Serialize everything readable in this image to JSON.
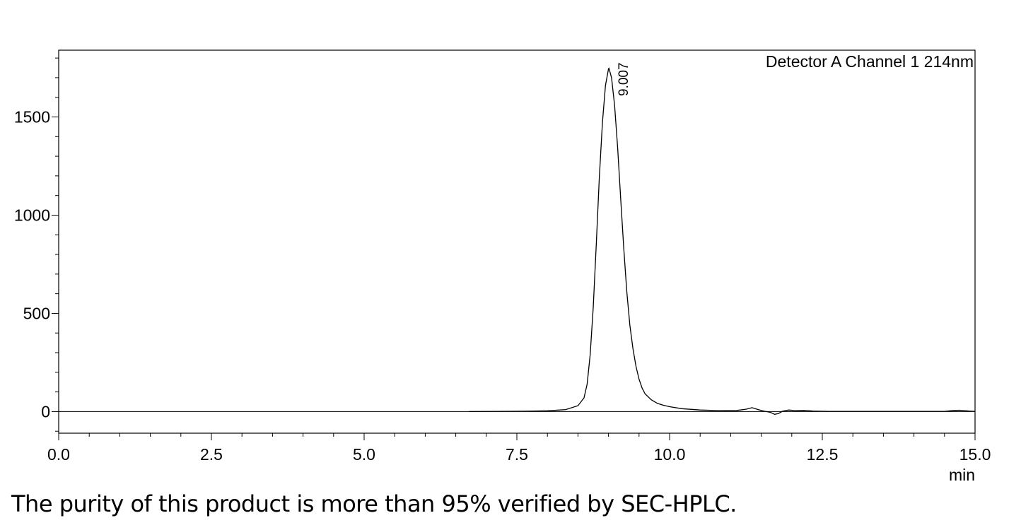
{
  "page": {
    "caption": "The purity of this product is more than 95% verified by SEC-HPLC."
  },
  "chart_data": {
    "type": "line",
    "title": "",
    "legend": "Detector A Channel 1 214nm",
    "xlabel": "min",
    "ylabel": "",
    "xlim": [
      0.0,
      15.0
    ],
    "ylim": [
      -110,
      1840
    ],
    "x_ticks": [
      "0.0",
      "2.5",
      "5.0",
      "7.5",
      "10.0",
      "12.5",
      "15.0"
    ],
    "x_tick_values": [
      0.0,
      2.5,
      5.0,
      7.5,
      10.0,
      12.5,
      15.0
    ],
    "y_ticks": [
      "0",
      "500",
      "1000",
      "1500"
    ],
    "y_tick_values": [
      0,
      500,
      1000,
      1500
    ],
    "grid": false,
    "baseline": 0,
    "peak_label": "9.007",
    "series": [
      {
        "color": "#000000",
        "points": [
          [
            6.72,
            0
          ],
          [
            7.2,
            1
          ],
          [
            7.6,
            2
          ],
          [
            8.0,
            4
          ],
          [
            8.3,
            10
          ],
          [
            8.5,
            30
          ],
          [
            8.6,
            70
          ],
          [
            8.65,
            140
          ],
          [
            8.7,
            290
          ],
          [
            8.75,
            530
          ],
          [
            8.8,
            850
          ],
          [
            8.85,
            1190
          ],
          [
            8.9,
            1470
          ],
          [
            8.95,
            1660
          ],
          [
            9.0,
            1745
          ],
          [
            9.007,
            1748
          ],
          [
            9.05,
            1700
          ],
          [
            9.1,
            1560
          ],
          [
            9.15,
            1340
          ],
          [
            9.2,
            1080
          ],
          [
            9.25,
            830
          ],
          [
            9.3,
            610
          ],
          [
            9.35,
            440
          ],
          [
            9.4,
            320
          ],
          [
            9.45,
            230
          ],
          [
            9.5,
            165
          ],
          [
            9.55,
            120
          ],
          [
            9.6,
            90
          ],
          [
            9.7,
            60
          ],
          [
            9.8,
            42
          ],
          [
            9.9,
            32
          ],
          [
            10.0,
            25
          ],
          [
            10.2,
            15
          ],
          [
            10.5,
            8
          ],
          [
            10.8,
            5
          ],
          [
            11.1,
            6
          ],
          [
            11.25,
            12
          ],
          [
            11.35,
            20
          ],
          [
            11.45,
            10
          ],
          [
            11.55,
            2
          ],
          [
            11.65,
            -4
          ],
          [
            11.72,
            -14
          ],
          [
            11.78,
            -10
          ],
          [
            11.85,
            2
          ],
          [
            11.95,
            8
          ],
          [
            12.05,
            5
          ],
          [
            12.2,
            6
          ],
          [
            12.35,
            3
          ],
          [
            12.6,
            1
          ],
          [
            13.0,
            1
          ],
          [
            13.5,
            1
          ],
          [
            14.2,
            1
          ],
          [
            14.5,
            1
          ],
          [
            14.65,
            6
          ],
          [
            14.75,
            7
          ],
          [
            14.9,
            3
          ],
          [
            15.0,
            1
          ]
        ]
      }
    ]
  }
}
